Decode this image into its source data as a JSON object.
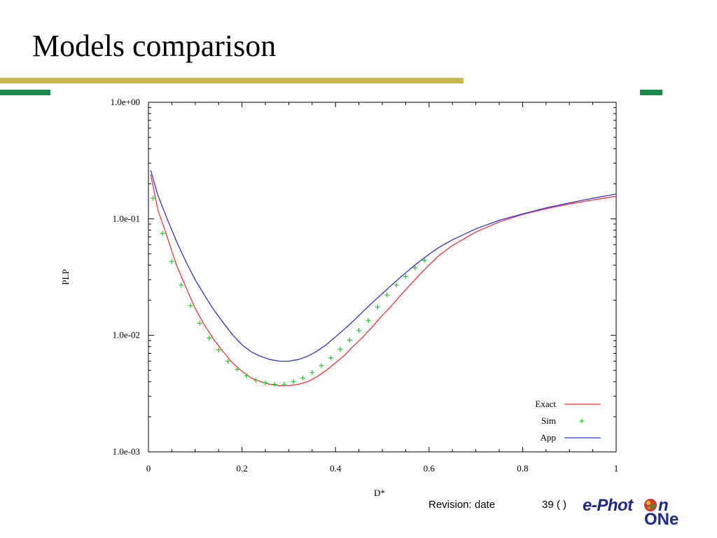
{
  "slide": {
    "title": "Models comparison"
  },
  "footer": {
    "revision": "Revision: date",
    "page": "39 (   )",
    "logo_line1": "e-Phot",
    "logo_line2": "ONe",
    "logo_n": "n"
  },
  "colors": {
    "gold_bar": "#c8b84a",
    "green_bar": "#1d8a4e",
    "exact": "#ff3030",
    "sim": "#22cc22",
    "app": "#3030ee",
    "logo": "#1a2a8c"
  },
  "chart_data": {
    "type": "line",
    "title": "",
    "xlabel": "D*",
    "ylabel": "PLP",
    "xlim": [
      0,
      1
    ],
    "ylim": [
      0.001,
      1
    ],
    "yscale": "log",
    "xticks": [
      0,
      0.2,
      0.4,
      0.6,
      0.8,
      1
    ],
    "xtick_labels": [
      "0",
      "0.2",
      "0.4",
      "0.6",
      "0.8",
      "1"
    ],
    "yticks": [
      1,
      0.1,
      0.01,
      0.001
    ],
    "ytick_labels": [
      "1.0e+00",
      "1.0e-01",
      "1.0e-02",
      "1.0e-03"
    ],
    "grid": false,
    "legend": "bottom-right",
    "series": [
      {
        "name": "Exact",
        "style": "line",
        "x": [
          0.005,
          0.02,
          0.04,
          0.06,
          0.08,
          0.1,
          0.12,
          0.14,
          0.16,
          0.18,
          0.2,
          0.22,
          0.24,
          0.26,
          0.28,
          0.3,
          0.32,
          0.34,
          0.36,
          0.38,
          0.4,
          0.42,
          0.44,
          0.46,
          0.48,
          0.5,
          0.52,
          0.54,
          0.56,
          0.58,
          0.6,
          0.62,
          0.65,
          0.7,
          0.75,
          0.8,
          0.85,
          0.9,
          0.95,
          1.0
        ],
        "y": [
          0.24,
          0.12,
          0.07,
          0.04,
          0.026,
          0.017,
          0.0122,
          0.0092,
          0.0072,
          0.0058,
          0.0049,
          0.0043,
          0.004,
          0.0038,
          0.0037,
          0.0037,
          0.0038,
          0.004,
          0.0044,
          0.005,
          0.0058,
          0.0068,
          0.0082,
          0.0098,
          0.012,
          0.0148,
          0.018,
          0.0222,
          0.0272,
          0.0332,
          0.04,
          0.048,
          0.059,
          0.077,
          0.094,
          0.109,
          0.122,
          0.134,
          0.145,
          0.156
        ]
      },
      {
        "name": "Sim",
        "style": "points",
        "x": [
          0.01,
          0.03,
          0.05,
          0.07,
          0.09,
          0.11,
          0.13,
          0.15,
          0.17,
          0.19,
          0.21,
          0.23,
          0.25,
          0.27,
          0.29,
          0.31,
          0.33,
          0.35,
          0.37,
          0.39,
          0.41,
          0.43,
          0.45,
          0.47,
          0.49,
          0.51,
          0.53,
          0.55,
          0.57,
          0.59
        ],
        "y": [
          0.15,
          0.075,
          0.043,
          0.027,
          0.018,
          0.0127,
          0.0095,
          0.0075,
          0.006,
          0.0051,
          0.0045,
          0.0041,
          0.0039,
          0.0038,
          0.0038,
          0.004,
          0.0043,
          0.0048,
          0.0055,
          0.0064,
          0.0076,
          0.0091,
          0.011,
          0.0134,
          0.0175,
          0.0222,
          0.027,
          0.032,
          0.038,
          0.044
        ]
      },
      {
        "name": "App",
        "style": "line",
        "x": [
          0.005,
          0.02,
          0.04,
          0.06,
          0.08,
          0.1,
          0.12,
          0.14,
          0.16,
          0.18,
          0.2,
          0.22,
          0.24,
          0.26,
          0.28,
          0.3,
          0.32,
          0.34,
          0.36,
          0.38,
          0.4,
          0.42,
          0.44,
          0.46,
          0.48,
          0.5,
          0.52,
          0.54,
          0.56,
          0.58,
          0.6,
          0.62,
          0.65,
          0.7,
          0.75,
          0.8,
          0.85,
          0.9,
          0.95,
          1.0
        ],
        "y": [
          0.26,
          0.16,
          0.1,
          0.064,
          0.043,
          0.03,
          0.022,
          0.0165,
          0.0128,
          0.0101,
          0.0083,
          0.0072,
          0.0066,
          0.0062,
          0.006,
          0.006,
          0.0062,
          0.0066,
          0.0073,
          0.0083,
          0.0097,
          0.0114,
          0.0135,
          0.0162,
          0.0193,
          0.0228,
          0.027,
          0.0318,
          0.0372,
          0.0432,
          0.0496,
          0.0565,
          0.066,
          0.082,
          0.097,
          0.11,
          0.124,
          0.137,
          0.15,
          0.163
        ]
      }
    ]
  }
}
